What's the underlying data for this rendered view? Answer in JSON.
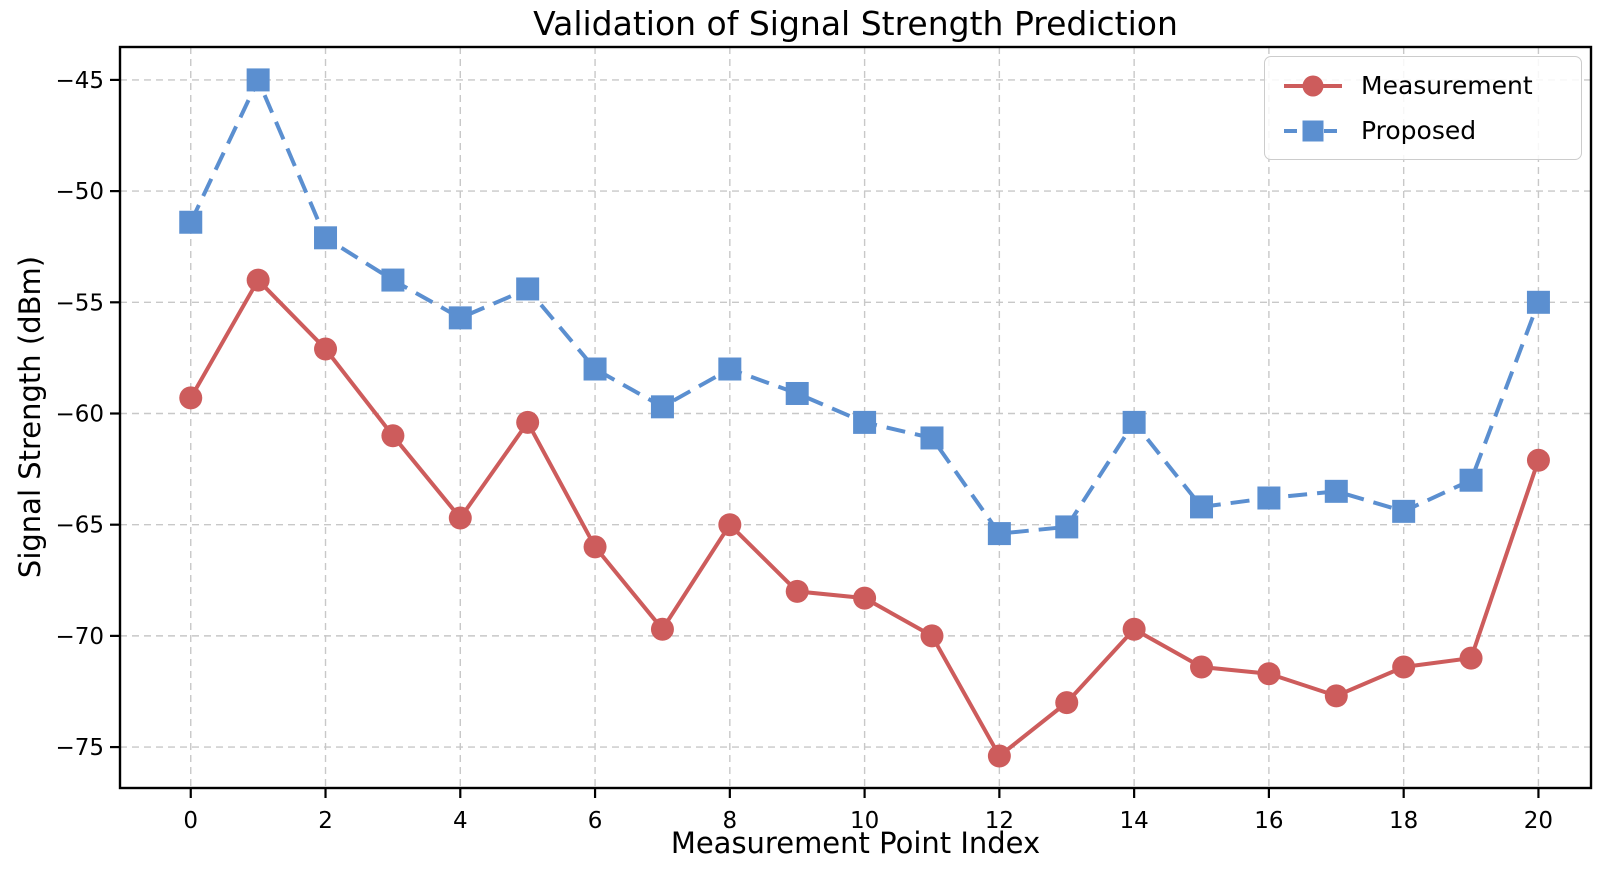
{
  "title": "Validation of Signal Strength Prediction",
  "x_axis": {
    "label": "Measurement Point Index",
    "tick_labels": [
      "0",
      "2",
      "4",
      "6",
      "8",
      "10",
      "12",
      "14",
      "16",
      "18",
      "20"
    ]
  },
  "y_axis": {
    "label": "Signal Strength (dBm)",
    "tick_labels": [
      "−45",
      "−50",
      "−55",
      "−60",
      "−65",
      "−70",
      "−75"
    ]
  },
  "legend": {
    "items": [
      {
        "label": "Measurement"
      },
      {
        "label": "Proposed"
      }
    ]
  },
  "chart_data": {
    "type": "line",
    "title": "Validation of Signal Strength Prediction",
    "xlabel": "Measurement Point Index",
    "ylabel": "Signal Strength (dBm)",
    "x": [
      0,
      1,
      2,
      3,
      4,
      5,
      6,
      7,
      8,
      9,
      10,
      11,
      12,
      13,
      14,
      15,
      16,
      17,
      18,
      19,
      20
    ],
    "series": [
      {
        "name": "Measurement",
        "color": "#cd5c5c",
        "line": "solid",
        "marker": "circle",
        "values": [
          -59.3,
          -54.0,
          -57.1,
          -61.0,
          -64.7,
          -60.4,
          -66.0,
          -69.7,
          -65.0,
          -68.0,
          -68.3,
          -70.0,
          -75.4,
          -73.0,
          -69.7,
          -71.4,
          -71.7,
          -72.7,
          -71.4,
          -71.0,
          -62.1
        ]
      },
      {
        "name": "Proposed",
        "color": "#5b8fd0",
        "line": "dashed",
        "marker": "square",
        "values": [
          -51.4,
          -45.0,
          -52.1,
          -54.0,
          -55.7,
          -54.4,
          -58.0,
          -59.7,
          -58.0,
          -59.1,
          -60.4,
          -61.1,
          -65.4,
          -65.1,
          -60.4,
          -64.2,
          -63.8,
          -63.5,
          -64.4,
          -63.0,
          -55.0
        ]
      }
    ],
    "x_ticks": [
      0,
      2,
      4,
      6,
      8,
      10,
      12,
      14,
      16,
      18,
      20
    ],
    "y_ticks": [
      -45,
      -50,
      -55,
      -60,
      -65,
      -70,
      -75
    ],
    "xlim": [
      -1.05,
      20.78
    ],
    "ylim": [
      -76.84,
      -43.52
    ],
    "grid": true,
    "legend_position": "upper right"
  }
}
